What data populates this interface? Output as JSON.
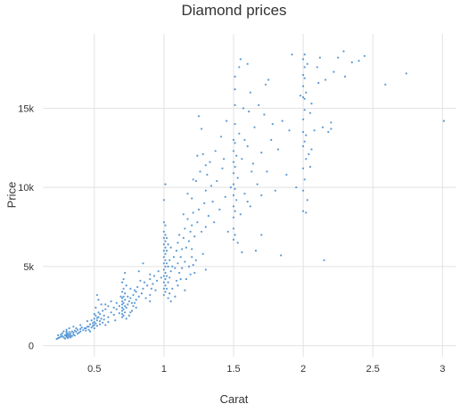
{
  "chart_data": {
    "type": "scatter",
    "title": "Diamond prices",
    "xlabel": "Carat",
    "ylabel": "Price",
    "xlim": [
      0.13,
      3.1
    ],
    "ylim": [
      -700,
      19700
    ],
    "grid": true,
    "legend": "none",
    "point_color": "#4a8fd0",
    "x_ticks": [
      {
        "value": 0.5,
        "label": "0.5"
      },
      {
        "value": 1,
        "label": "1"
      },
      {
        "value": 1.5,
        "label": "1.5"
      },
      {
        "value": 2,
        "label": "2"
      },
      {
        "value": 2.5,
        "label": "2.5"
      },
      {
        "value": 3,
        "label": "3"
      }
    ],
    "y_ticks": [
      {
        "value": 0,
        "label": "0"
      },
      {
        "value": 5000,
        "label": "5k"
      },
      {
        "value": 10000,
        "label": "10k"
      },
      {
        "value": 15000,
        "label": "15k"
      }
    ],
    "points": [
      [
        0.23,
        420
      ],
      [
        0.24,
        480
      ],
      [
        0.25,
        510
      ],
      [
        0.26,
        560
      ],
      [
        0.27,
        600
      ],
      [
        0.28,
        520
      ],
      [
        0.29,
        650
      ],
      [
        0.3,
        700
      ],
      [
        0.3,
        600
      ],
      [
        0.3,
        800
      ],
      [
        0.3,
        560
      ],
      [
        0.31,
        620
      ],
      [
        0.31,
        750
      ],
      [
        0.32,
        700
      ],
      [
        0.32,
        860
      ],
      [
        0.33,
        780
      ],
      [
        0.33,
        640
      ],
      [
        0.34,
        900
      ],
      [
        0.35,
        820
      ],
      [
        0.35,
        700
      ],
      [
        0.36,
        950
      ],
      [
        0.37,
        880
      ],
      [
        0.38,
        1000
      ],
      [
        0.4,
        1050
      ],
      [
        0.4,
        900
      ],
      [
        0.41,
        1150
      ],
      [
        0.42,
        980
      ],
      [
        0.26,
        700
      ],
      [
        0.29,
        450
      ],
      [
        0.31,
        480
      ],
      [
        0.33,
        520
      ],
      [
        0.34,
        600
      ],
      [
        0.36,
        640
      ],
      [
        0.38,
        750
      ],
      [
        0.39,
        820
      ],
      [
        0.43,
        1100
      ],
      [
        0.44,
        950
      ],
      [
        0.45,
        1200
      ],
      [
        0.28,
        900
      ],
      [
        0.32,
        1100
      ],
      [
        0.35,
        1200
      ],
      [
        0.3,
        1000
      ],
      [
        0.27,
        780
      ],
      [
        0.24,
        650
      ],
      [
        0.3,
        900
      ],
      [
        0.32,
        560
      ],
      [
        0.37,
        1100
      ],
      [
        0.4,
        1300
      ],
      [
        0.5,
        1300
      ],
      [
        0.5,
        1500
      ],
      [
        0.5,
        1700
      ],
      [
        0.51,
        1400
      ],
      [
        0.51,
        1900
      ],
      [
        0.52,
        1600
      ],
      [
        0.52,
        1250
      ],
      [
        0.53,
        1800
      ],
      [
        0.53,
        2100
      ],
      [
        0.54,
        1550
      ],
      [
        0.54,
        2000
      ],
      [
        0.55,
        1700
      ],
      [
        0.56,
        2200
      ],
      [
        0.56,
        1450
      ],
      [
        0.57,
        1900
      ],
      [
        0.58,
        2300
      ],
      [
        0.5,
        1100
      ],
      [
        0.5,
        2000
      ],
      [
        0.51,
        2400
      ],
      [
        0.52,
        1750
      ],
      [
        0.55,
        2600
      ],
      [
        0.53,
        2900
      ],
      [
        0.52,
        3200
      ],
      [
        0.6,
        1800
      ],
      [
        0.62,
        2100
      ],
      [
        0.64,
        1950
      ],
      [
        0.66,
        2300
      ],
      [
        0.68,
        2050
      ],
      [
        0.54,
        1350
      ],
      [
        0.57,
        1650
      ],
      [
        0.7,
        1800
      ],
      [
        0.7,
        2000
      ],
      [
        0.7,
        2200
      ],
      [
        0.7,
        2400
      ],
      [
        0.7,
        2600
      ],
      [
        0.7,
        2800
      ],
      [
        0.7,
        3000
      ],
      [
        0.7,
        3400
      ],
      [
        0.71,
        1900
      ],
      [
        0.71,
        2300
      ],
      [
        0.71,
        2700
      ],
      [
        0.71,
        3100
      ],
      [
        0.71,
        3600
      ],
      [
        0.72,
        2100
      ],
      [
        0.72,
        2500
      ],
      [
        0.72,
        2900
      ],
      [
        0.72,
        3300
      ],
      [
        0.73,
        2400
      ],
      [
        0.73,
        3800
      ],
      [
        0.74,
        2600
      ],
      [
        0.75,
        2800
      ],
      [
        0.76,
        3000
      ],
      [
        0.77,
        2700
      ],
      [
        0.78,
        3200
      ],
      [
        0.79,
        3500
      ],
      [
        0.8,
        2900
      ],
      [
        0.8,
        3400
      ],
      [
        0.81,
        3700
      ],
      [
        0.82,
        3100
      ],
      [
        0.83,
        4100
      ],
      [
        0.84,
        3300
      ],
      [
        0.85,
        3600
      ],
      [
        0.86,
        4000
      ],
      [
        0.88,
        3800
      ],
      [
        0.9,
        3200
      ],
      [
        0.9,
        4200
      ],
      [
        0.9,
        4500
      ],
      [
        0.91,
        3600
      ],
      [
        0.92,
        3900
      ],
      [
        0.93,
        4400
      ],
      [
        0.95,
        4100
      ],
      [
        0.96,
        4700
      ],
      [
        0.98,
        4300
      ],
      [
        0.7,
        4000
      ],
      [
        0.71,
        4200
      ],
      [
        0.72,
        4600
      ],
      [
        0.75,
        1900
      ],
      [
        0.77,
        2200
      ],
      [
        0.85,
        5200
      ],
      [
        0.8,
        2400
      ],
      [
        1,
        3200
      ],
      [
        1,
        3600
      ],
      [
        1,
        4000
      ],
      [
        1,
        4400
      ],
      [
        1,
        4800
      ],
      [
        1,
        5200
      ],
      [
        1,
        5600
      ],
      [
        1,
        6000
      ],
      [
        1,
        6400
      ],
      [
        1,
        6800
      ],
      [
        1,
        7200
      ],
      [
        1,
        7800
      ],
      [
        1,
        9200
      ],
      [
        1.01,
        3400
      ],
      [
        1.01,
        3800
      ],
      [
        1.01,
        4200
      ],
      [
        1.01,
        4600
      ],
      [
        1.01,
        5000
      ],
      [
        1.01,
        5400
      ],
      [
        1.01,
        5800
      ],
      [
        1.01,
        6200
      ],
      [
        1.01,
        6600
      ],
      [
        1.01,
        7000
      ],
      [
        1.01,
        7600
      ],
      [
        1.01,
        10200
      ],
      [
        1.02,
        3600
      ],
      [
        1.02,
        4400
      ],
      [
        1.02,
        5200
      ],
      [
        1.02,
        6000
      ],
      [
        1.02,
        6800
      ],
      [
        1.03,
        4000
      ],
      [
        1.03,
        5000
      ],
      [
        1.03,
        6400
      ],
      [
        1.04,
        4300
      ],
      [
        1.04,
        5400
      ],
      [
        1.05,
        4700
      ],
      [
        1.05,
        6200
      ],
      [
        1.06,
        5000
      ],
      [
        1.07,
        5600
      ],
      [
        1.08,
        4900
      ],
      [
        1.09,
        6000
      ],
      [
        1.1,
        5200
      ],
      [
        1.1,
        6500
      ],
      [
        1.11,
        7000
      ],
      [
        1.12,
        5600
      ],
      [
        1.13,
        6100
      ],
      [
        1.14,
        6800
      ],
      [
        1.15,
        5300
      ],
      [
        1.15,
        7400
      ],
      [
        1.16,
        6200
      ],
      [
        1.17,
        8000
      ],
      [
        1.18,
        6600
      ],
      [
        1.19,
        7200
      ],
      [
        1.2,
        5600
      ],
      [
        1.2,
        7600
      ],
      [
        1.2,
        9300
      ],
      [
        1.21,
        8400
      ],
      [
        1.22,
        6900
      ],
      [
        1.23,
        10400
      ],
      [
        1.24,
        7800
      ],
      [
        1.25,
        8600
      ],
      [
        1.26,
        11000
      ],
      [
        1.27,
        7200
      ],
      [
        1.28,
        12100
      ],
      [
        1.29,
        9000
      ],
      [
        1.3,
        7500
      ],
      [
        1.3,
        9800
      ],
      [
        1.31,
        10800
      ],
      [
        1.32,
        8200
      ],
      [
        1.33,
        11600
      ],
      [
        1.35,
        9100
      ],
      [
        1.36,
        7800
      ],
      [
        1.38,
        10400
      ],
      [
        1.4,
        8600
      ],
      [
        1.42,
        11200
      ],
      [
        1.44,
        9400
      ],
      [
        1.46,
        7200
      ],
      [
        1.48,
        10000
      ],
      [
        1.2,
        6100
      ],
      [
        1.25,
        14500
      ],
      [
        1.27,
        13700
      ],
      [
        1.1,
        3800
      ],
      [
        1.12,
        4200
      ],
      [
        1.18,
        5000
      ],
      [
        1.22,
        4600
      ],
      [
        1.28,
        5800
      ],
      [
        1.3,
        4800
      ],
      [
        1.05,
        2800
      ],
      [
        1.08,
        3100
      ],
      [
        1.15,
        3500
      ],
      [
        1.5,
        6700
      ],
      [
        1.5,
        7400
      ],
      [
        1.5,
        8100
      ],
      [
        1.5,
        8800
      ],
      [
        1.5,
        9500
      ],
      [
        1.5,
        10200
      ],
      [
        1.5,
        10900
      ],
      [
        1.5,
        11600
      ],
      [
        1.5,
        12300
      ],
      [
        1.5,
        13000
      ],
      [
        1.51,
        7000
      ],
      [
        1.51,
        8500
      ],
      [
        1.51,
        9900
      ],
      [
        1.51,
        11300
      ],
      [
        1.51,
        12800
      ],
      [
        1.51,
        14000
      ],
      [
        1.51,
        15200
      ],
      [
        1.51,
        16200
      ],
      [
        1.51,
        17000
      ],
      [
        1.52,
        9200
      ],
      [
        1.52,
        12000
      ],
      [
        1.53,
        10600
      ],
      [
        1.54,
        13400
      ],
      [
        1.55,
        8300
      ],
      [
        1.56,
        11800
      ],
      [
        1.57,
        15000
      ],
      [
        1.58,
        9600
      ],
      [
        1.6,
        12600
      ],
      [
        1.61,
        14800
      ],
      [
        1.62,
        8800
      ],
      [
        1.63,
        11000
      ],
      [
        1.65,
        13800
      ],
      [
        1.67,
        10200
      ],
      [
        1.68,
        15200
      ],
      [
        1.7,
        9500
      ],
      [
        1.7,
        12200
      ],
      [
        1.72,
        14600
      ],
      [
        1.74,
        11000
      ],
      [
        1.75,
        16800
      ],
      [
        1.77,
        13000
      ],
      [
        1.8,
        9800
      ],
      [
        1.82,
        12400
      ],
      [
        1.84,
        5700
      ],
      [
        1.85,
        14200
      ],
      [
        1.88,
        10800
      ],
      [
        1.9,
        13600
      ],
      [
        1.92,
        18400
      ],
      [
        1.54,
        17600
      ],
      [
        1.6,
        17800
      ],
      [
        1.66,
        6000
      ],
      [
        1.7,
        7000
      ],
      [
        1.73,
        16500
      ],
      [
        1.53,
        6500
      ],
      [
        1.56,
        5900
      ],
      [
        1.58,
        13000
      ],
      [
        1.6,
        9100
      ],
      [
        1.62,
        16000
      ],
      [
        1.64,
        11500
      ],
      [
        1.78,
        14000
      ],
      [
        1.55,
        18100
      ],
      [
        2,
        8500
      ],
      [
        2,
        9800
      ],
      [
        2,
        11200
      ],
      [
        2,
        12600
      ],
      [
        2,
        13500
      ],
      [
        2,
        14300
      ],
      [
        2,
        15700
      ],
      [
        2,
        16400
      ],
      [
        2,
        17100
      ],
      [
        2,
        18100
      ],
      [
        2.01,
        10500
      ],
      [
        2.01,
        12900
      ],
      [
        2.01,
        14900
      ],
      [
        2.01,
        15600
      ],
      [
        2.01,
        16900
      ],
      [
        2.01,
        17600
      ],
      [
        2.01,
        18400
      ],
      [
        2.02,
        11800
      ],
      [
        2.02,
        13300
      ],
      [
        2.02,
        16000
      ],
      [
        2.03,
        9200
      ],
      [
        2.03,
        17800
      ],
      [
        2.04,
        12100
      ],
      [
        2.05,
        14700
      ],
      [
        2.06,
        15300
      ],
      [
        2.08,
        13600
      ],
      [
        2.1,
        17600
      ],
      [
        2.12,
        18200
      ],
      [
        2.15,
        5400
      ],
      [
        2.18,
        13500
      ],
      [
        2.2,
        14100
      ],
      [
        2.22,
        17300
      ],
      [
        2.25,
        18200
      ],
      [
        2.29,
        18600
      ],
      [
        2.35,
        17900
      ],
      [
        2.4,
        18000
      ],
      [
        2.44,
        18300
      ],
      [
        2.59,
        16500
      ],
      [
        2.74,
        17200
      ],
      [
        3.01,
        14200
      ],
      [
        2.02,
        8400
      ],
      [
        2.05,
        11300
      ],
      [
        2.14,
        13800
      ],
      [
        2.2,
        13700
      ],
      [
        2.3,
        17000
      ],
      [
        2.11,
        16600
      ],
      [
        1.95,
        10000
      ],
      [
        1.98,
        15800
      ],
      [
        2.06,
        12400
      ],
      [
        2.16,
        16800
      ],
      [
        0.46,
        1200
      ],
      [
        0.47,
        1350
      ],
      [
        0.48,
        1150
      ],
      [
        0.49,
        1420
      ],
      [
        0.45,
        1550
      ],
      [
        0.46,
        1000
      ],
      [
        0.47,
        900
      ],
      [
        0.48,
        1600
      ],
      [
        0.49,
        1250
      ],
      [
        0.44,
        1100
      ],
      [
        0.58,
        2600
      ],
      [
        0.6,
        2500
      ],
      [
        0.62,
        2800
      ],
      [
        0.65,
        1600
      ],
      [
        0.66,
        2700
      ],
      [
        0.68,
        2500
      ],
      [
        0.69,
        3100
      ],
      [
        0.64,
        2400
      ],
      [
        0.6,
        1500
      ],
      [
        0.58,
        1300
      ],
      [
        0.76,
        2100
      ],
      [
        0.78,
        2500
      ],
      [
        0.73,
        1700
      ],
      [
        0.74,
        3100
      ],
      [
        0.76,
        3600
      ],
      [
        0.79,
        2700
      ],
      [
        0.82,
        4700
      ],
      [
        0.87,
        3000
      ],
      [
        0.9,
        2800
      ],
      [
        0.94,
        3500
      ],
      [
        1.03,
        3000
      ],
      [
        1.04,
        3300
      ],
      [
        1.06,
        3600
      ],
      [
        1.09,
        4100
      ],
      [
        1.11,
        4600
      ],
      [
        1.13,
        4900
      ],
      [
        1.16,
        4200
      ],
      [
        1.19,
        4500
      ],
      [
        1.21,
        5100
      ],
      [
        1.23,
        5400
      ],
      [
        1.14,
        8300
      ],
      [
        1.17,
        9600
      ],
      [
        1.21,
        10500
      ],
      [
        1.24,
        12000
      ],
      [
        1.3,
        11400
      ],
      [
        1.34,
        10100
      ],
      [
        1.37,
        12300
      ],
      [
        1.41,
        13200
      ],
      [
        1.43,
        11800
      ],
      [
        1.45,
        14200
      ]
    ]
  }
}
